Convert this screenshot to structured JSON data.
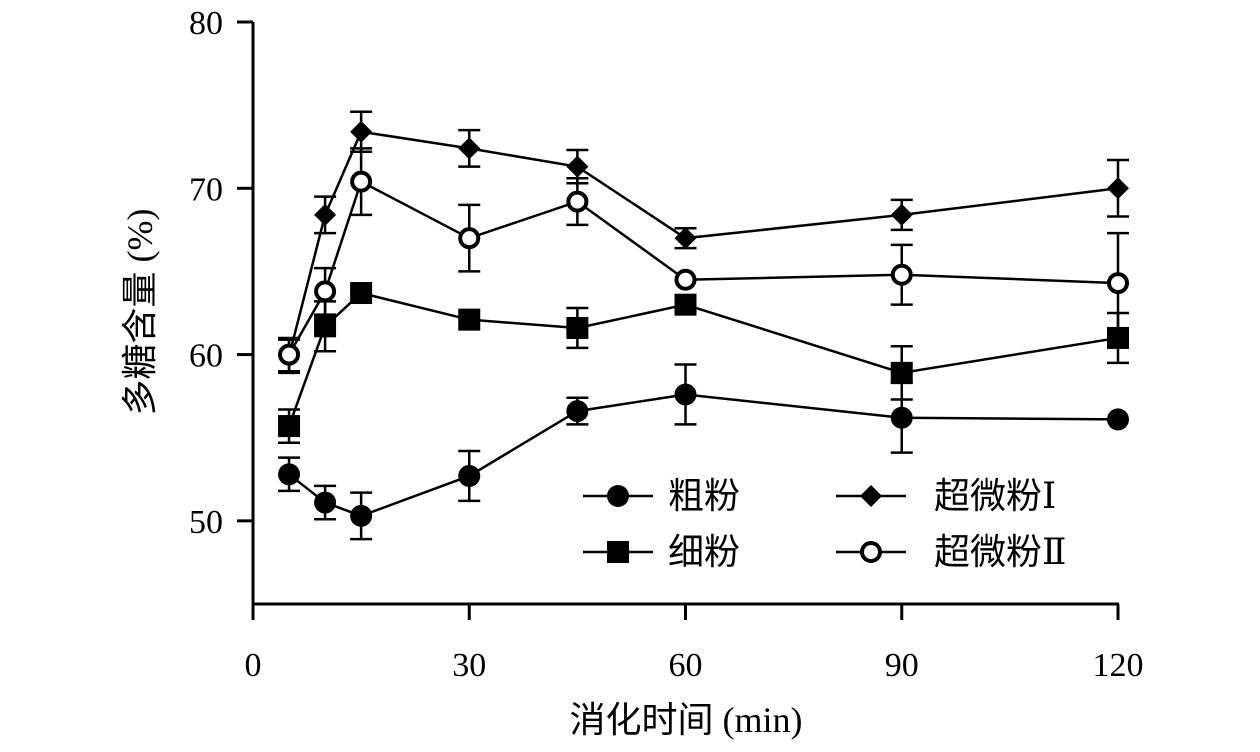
{
  "chart_data": {
    "type": "line",
    "xlabel": "消化时间 (min)",
    "ylabel": "多糖含量 (%)",
    "xlim": [
      0,
      120
    ],
    "ylim": [
      45,
      80
    ],
    "xticks": [
      0,
      30,
      60,
      90,
      120
    ],
    "yticks": [
      50,
      60,
      70,
      80
    ],
    "x": [
      5,
      10,
      15,
      30,
      45,
      60,
      90,
      120
    ],
    "grid": false,
    "legend_position": "bottom-right",
    "series": [
      {
        "name": "粗粉",
        "marker": "filled-circle",
        "values": [
          52.8,
          51.1,
          50.3,
          52.7,
          56.6,
          57.6,
          56.2,
          56.1
        ],
        "errors": [
          1.0,
          1.0,
          1.4,
          1.5,
          0.8,
          1.8,
          2.1,
          0.0
        ]
      },
      {
        "name": "细粉",
        "marker": "filled-square",
        "values": [
          55.7,
          61.7,
          63.7,
          62.1,
          61.6,
          63.0,
          58.9,
          61.0
        ],
        "errors": [
          1.0,
          1.5,
          0.0,
          0.0,
          1.2,
          0.0,
          1.6,
          1.5
        ]
      },
      {
        "name": "超微粉Ⅰ",
        "marker": "filled-diamond",
        "values": [
          59.9,
          68.4,
          73.4,
          72.4,
          71.3,
          67.0,
          68.4,
          70.0
        ],
        "errors": [
          1.0,
          1.1,
          1.2,
          1.1,
          1.0,
          0.6,
          0.9,
          1.7
        ]
      },
      {
        "name": "超微粉Ⅱ",
        "marker": "open-circle",
        "values": [
          60.0,
          63.8,
          70.4,
          67.0,
          69.2,
          64.5,
          64.8,
          64.3
        ],
        "errors": [
          1.0,
          1.4,
          2.0,
          2.0,
          1.4,
          0.0,
          1.8,
          3.0
        ]
      }
    ]
  }
}
